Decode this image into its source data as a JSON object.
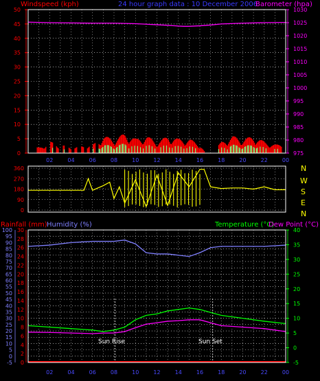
{
  "colors": {
    "bg": "#000000",
    "frame": "#ffffff",
    "grid": "#ffffff",
    "wind": "#ff0000",
    "gust": "#ffffff",
    "avg": "#80ff80",
    "baro": "#ff00ff",
    "dir": "#ffff00",
    "rain": "#ff0000",
    "hum": "#8080ff",
    "temp": "#00ff00",
    "dew": "#ff00ff",
    "tick_red": "#ff0000",
    "tick_blue": "#8080ff",
    "tick_green": "#00ff00",
    "tick_magenta": "#ff00ff"
  },
  "texts": {
    "wind_title": "Windspeed (kph)",
    "date_title": "24 hour graph data : 10 December 2006",
    "baro_title": "Barometer (hpa)",
    "rain_title": "Rainfall (mm)",
    "hum_title": "Humidity (%)",
    "temp_title": "Temperature (°C)",
    "dew_title": "Dew Point (°C)",
    "sunrise": "Sun Rise",
    "sunset": "Sun Set",
    "compass": [
      "N",
      "W",
      "S",
      "E",
      "N"
    ]
  },
  "chart_data": [
    {
      "type": "line",
      "panel": "wind_baro",
      "x_ticks": [
        "02",
        "04",
        "06",
        "08",
        "10",
        "12",
        "14",
        "16",
        "18",
        "20",
        "22",
        "00"
      ],
      "left_axis": {
        "label": "Windspeed (kph)",
        "range": [
          0,
          50
        ],
        "ticks": [
          "0",
          "5",
          "10",
          "15",
          "20",
          "25",
          "30",
          "35",
          "40",
          "45",
          "50"
        ]
      },
      "right_axis": {
        "label": "Barometer (hpa)",
        "range": [
          975,
          1030
        ],
        "ticks": [
          "975",
          "980",
          "985",
          "990",
          "995",
          "1000",
          "1005",
          "1010",
          "1015",
          "1020",
          "1025",
          "1030"
        ]
      },
      "series": [
        {
          "name": "Barometer (hpa)",
          "axis": "right",
          "x": [
            0,
            2,
            4,
            6,
            8,
            10,
            11,
            12,
            13,
            14,
            14.5,
            15,
            16,
            17,
            18,
            20,
            22,
            24
          ],
          "values": [
            1025.2,
            1025.0,
            1024.9,
            1024.8,
            1024.8,
            1024.6,
            1024.4,
            1024.2,
            1024.0,
            1023.7,
            1023.6,
            1023.6,
            1023.8,
            1024.1,
            1024.5,
            1024.8,
            1025.0,
            1025.1
          ]
        },
        {
          "name": "Windspeed (kph)",
          "axis": "left",
          "notes": "gusts to ~8 kph, red bars",
          "x": [
            1,
            2,
            4,
            6,
            7,
            8,
            9,
            10,
            11,
            12,
            13,
            14,
            15,
            16,
            16.5,
            17,
            18,
            19,
            20,
            21,
            22,
            23
          ],
          "values": [
            2,
            4,
            2,
            3,
            6,
            5,
            7,
            5,
            6,
            4,
            6,
            5,
            5,
            3,
            0,
            0,
            4,
            6,
            5,
            6,
            4,
            3
          ]
        }
      ]
    },
    {
      "type": "line",
      "panel": "wind_direction",
      "y_axis": {
        "range": [
          0,
          360
        ],
        "ticks": [
          "0",
          "90",
          "180",
          "270",
          "360"
        ]
      },
      "series": [
        {
          "name": "direction",
          "x": [
            0,
            2,
            4,
            5.2,
            5.6,
            6,
            7,
            7.6,
            8,
            8.5,
            9,
            10,
            11,
            12,
            13,
            14,
            15,
            16,
            16.4,
            17,
            18,
            19,
            20,
            21,
            22,
            23,
            24
          ],
          "values": [
            170,
            170,
            170,
            170,
            270,
            170,
            210,
            240,
            100,
            200,
            60,
            260,
            30,
            300,
            40,
            320,
            200,
            350,
            350,
            200,
            185,
            190,
            190,
            180,
            200,
            175,
            175
          ]
        }
      ]
    },
    {
      "type": "line",
      "panel": "rain_hum_temp",
      "left_axis_humidity": {
        "label": "Humidity (%)",
        "range": [
          -5,
          100
        ],
        "ticks": [
          "-5",
          "0",
          "5",
          "10",
          "15",
          "20",
          "25",
          "30",
          "35",
          "40",
          "45",
          "50",
          "55",
          "60",
          "65",
          "70",
          "75",
          "80",
          "85",
          "90",
          "95",
          "100"
        ]
      },
      "left_axis_rain": {
        "label": "Rainfall (mm)",
        "range": [
          0,
          30
        ],
        "ticks": [
          "0",
          "2",
          "4",
          "6",
          "8",
          "10",
          "12",
          "14",
          "16",
          "18",
          "20",
          "22",
          "24",
          "26",
          "28",
          "30"
        ]
      },
      "right_axis": {
        "label": "Temperature (°C)",
        "range": [
          -5,
          40
        ],
        "ticks": [
          "-5",
          "0",
          "5",
          "10",
          "15",
          "20",
          "25",
          "30",
          "35",
          "40"
        ]
      },
      "annotations": [
        {
          "text": "Sun Rise",
          "x": 8.1
        },
        {
          "text": "Sun Set",
          "x": 17.2
        }
      ],
      "series": [
        {
          "name": "Humidity (%)",
          "x": [
            0,
            2,
            4,
            6,
            8,
            9,
            10,
            11,
            12,
            13,
            14,
            15,
            16,
            17,
            18,
            20,
            22,
            24
          ],
          "values": [
            87,
            88,
            90,
            91,
            91,
            92,
            89,
            82,
            81,
            81,
            80,
            79,
            82,
            86,
            87,
            87,
            87,
            88
          ]
        },
        {
          "name": "Temperature (°C)",
          "x": [
            0,
            2,
            4,
            6,
            7,
            8,
            9,
            10,
            11,
            12,
            13,
            14,
            15,
            16,
            17,
            18,
            20,
            22,
            24
          ],
          "values": [
            7.5,
            7,
            6.5,
            6,
            5.5,
            6,
            7,
            9.5,
            11,
            11.5,
            12.5,
            13,
            13.5,
            13,
            12,
            11,
            10,
            9,
            8.2
          ]
        },
        {
          "name": "Dew Point (°C)",
          "x": [
            0,
            2,
            4,
            6,
            7,
            8,
            9,
            10,
            11,
            12,
            13,
            14,
            15,
            16,
            17,
            18,
            20,
            22,
            24
          ],
          "values": [
            5.3,
            5.2,
            5,
            4.8,
            5,
            5,
            5.5,
            6.8,
            8,
            8.5,
            9,
            9.2,
            9.5,
            9.5,
            8.5,
            7.5,
            7,
            6.5,
            5.5
          ]
        },
        {
          "name": "Rainfall (mm)",
          "values_const": 0
        }
      ]
    }
  ]
}
